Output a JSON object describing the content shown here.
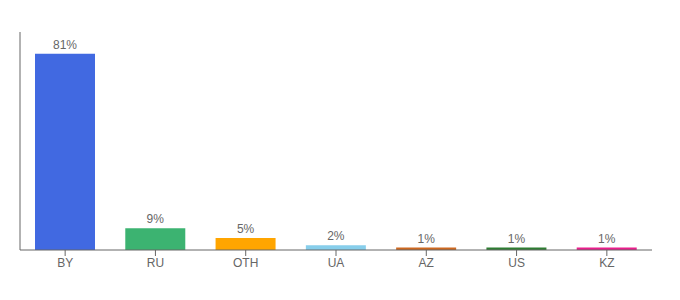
{
  "chart_data": {
    "type": "bar",
    "categories": [
      "BY",
      "RU",
      "OTH",
      "UA",
      "AZ",
      "US",
      "KZ"
    ],
    "values": [
      81,
      9,
      5,
      2,
      1,
      1,
      1
    ],
    "value_labels": [
      "81%",
      "9%",
      "5%",
      "2%",
      "1%",
      "1%",
      "1%"
    ],
    "colors": [
      "#4169E1",
      "#3CB371",
      "#FFA500",
      "#87CEEB",
      "#CD6820",
      "#2E7D32",
      "#E91E8C"
    ],
    "ylim": [
      0,
      90
    ],
    "data_labels": true,
    "tick_labels": "x",
    "grid": false
  }
}
